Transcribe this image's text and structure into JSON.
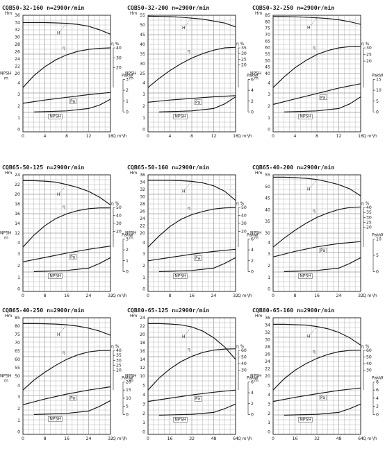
{
  "colors": {
    "grid": "#9a9a9a",
    "curve": "#1b1b1b",
    "paper": "#ffffff"
  },
  "chart_data": [
    {
      "type": "line",
      "title": "CQB50-32-160 n=2900r/min",
      "xlabel": "Q m³/h",
      "ylabel_head": "Hm",
      "x_ticks": [
        "0",
        "4",
        "8",
        "12",
        "16"
      ],
      "xlim": [
        0,
        16
      ],
      "head_ticks": [
        "20",
        "22",
        "24",
        "26",
        "28",
        "30",
        "32",
        "34",
        "36"
      ],
      "npsh_ticks": [
        "0",
        "1",
        "2",
        "3",
        "4"
      ],
      "eff_ticks": [
        "20",
        "30",
        "40"
      ],
      "power_ticks": [
        "0",
        "1",
        "2",
        "3"
      ],
      "eff_label": "η %",
      "power_label": "PakW",
      "npsh_label": "NPSH m",
      "series": [
        {
          "name": "H",
          "x": [
            0,
            2,
            4,
            6,
            8,
            10,
            12,
            14,
            16
          ],
          "y": [
            34,
            34,
            34,
            33.9,
            33.8,
            33.5,
            33,
            32,
            30.8
          ]
        },
        {
          "name": "η",
          "x": [
            0,
            2,
            4,
            6,
            8,
            10,
            12,
            14,
            16
          ],
          "y": [
            0,
            12,
            21,
            28,
            33,
            36.5,
            38.5,
            39.6,
            40
          ]
        },
        {
          "name": "Pa",
          "x": [
            0,
            4,
            8,
            12,
            16
          ],
          "y": [
            0.8,
            1.1,
            1.35,
            1.6,
            1.8
          ]
        },
        {
          "name": "NPSH",
          "x": [
            2,
            8,
            12,
            14,
            16
          ],
          "y": [
            1.5,
            1.6,
            1.8,
            2.1,
            2.6
          ]
        }
      ]
    },
    {
      "type": "line",
      "title": "CQB50-32-200 n=2900r/min",
      "xlabel": "Q m³/h",
      "ylabel_head": "Hm",
      "x_ticks": [
        "0",
        "4",
        "8",
        "12",
        "16"
      ],
      "xlim": [
        0,
        16
      ],
      "head_ticks": [
        "25",
        "30",
        "35",
        "40",
        "45",
        "50",
        "55"
      ],
      "npsh_ticks": [
        "0",
        "1",
        "2",
        "3",
        "4"
      ],
      "eff_ticks": [
        "20",
        "25",
        "30",
        "35"
      ],
      "power_ticks": [
        "0",
        "2",
        "4",
        "6"
      ],
      "eff_label": "η %",
      "power_label": "PakW",
      "npsh_label": "NPSH m",
      "series": [
        {
          "name": "H",
          "x": [
            0,
            2,
            4,
            6,
            8,
            10,
            12,
            14,
            16
          ],
          "y": [
            54.5,
            54.4,
            54.3,
            54,
            53.5,
            53,
            52,
            51,
            49
          ]
        },
        {
          "name": "η",
          "x": [
            0,
            2,
            4,
            6,
            8,
            10,
            12,
            14,
            16
          ],
          "y": [
            0,
            8,
            15,
            21,
            26,
            30,
            33,
            35,
            35.5
          ]
        },
        {
          "name": "Pa",
          "x": [
            0,
            4,
            8,
            12,
            16
          ],
          "y": [
            1.8,
            2.2,
            2.5,
            2.8,
            3.0
          ]
        },
        {
          "name": "NPSH",
          "x": [
            2,
            8,
            12,
            14,
            16
          ],
          "y": [
            1.5,
            1.6,
            1.8,
            2.2,
            2.8
          ]
        }
      ]
    },
    {
      "type": "line",
      "title": "CQB50-32-250 n=2900r/min",
      "xlabel": "Q m³/h",
      "ylabel_head": "Hm",
      "x_ticks": [
        "0",
        "4",
        "8",
        "12",
        "16"
      ],
      "xlim": [
        0,
        16
      ],
      "head_ticks": [
        "40",
        "45",
        "50",
        "55",
        "60",
        "65",
        "70",
        "75",
        "80",
        "85"
      ],
      "npsh_ticks": [
        "0",
        "1",
        "2",
        "3",
        "4"
      ],
      "eff_ticks": [
        "20",
        "25",
        "30"
      ],
      "power_ticks": [
        "0",
        "5",
        "10",
        "15"
      ],
      "eff_label": "η %",
      "power_label": "PakW",
      "npsh_label": "NPSH m",
      "series": [
        {
          "name": "H",
          "x": [
            0,
            2,
            4,
            6,
            8,
            10,
            12,
            14,
            16
          ],
          "y": [
            84,
            84,
            83.8,
            83.5,
            83,
            82.5,
            81.5,
            80,
            78
          ]
        },
        {
          "name": "η",
          "x": [
            0,
            2,
            4,
            6,
            8,
            10,
            12,
            14,
            16
          ],
          "y": [
            0,
            8,
            15,
            20.5,
            25,
            28,
            30,
            31,
            31
          ]
        },
        {
          "name": "Pa",
          "x": [
            0,
            4,
            8,
            12,
            16
          ],
          "y": [
            3.5,
            6,
            8.5,
            11,
            13
          ]
        },
        {
          "name": "NPSH",
          "x": [
            2,
            8,
            12,
            14,
            16
          ],
          "y": [
            1.5,
            1.6,
            1.8,
            2.2,
            2.8
          ]
        }
      ]
    },
    {
      "type": "line",
      "title": "CQB65-50-125 n=2900r/min",
      "xlabel": "Q m³/h",
      "ylabel_head": "Hm",
      "x_ticks": [
        "0",
        "8",
        "16",
        "24",
        "32"
      ],
      "xlim": [
        0,
        32
      ],
      "head_ticks": [
        "12",
        "14",
        "16",
        "18",
        "20",
        "22",
        "24"
      ],
      "npsh_ticks": [
        "0",
        "1",
        "2",
        "3",
        "4"
      ],
      "eff_ticks": [
        "20",
        "30",
        "40",
        "50"
      ],
      "power_ticks": [
        "0",
        "1",
        "2",
        "3"
      ],
      "eff_label": "η %",
      "power_label": "PakW",
      "npsh_label": "NPSH m",
      "series": [
        {
          "name": "H",
          "x": [
            0,
            4,
            8,
            12,
            16,
            20,
            24,
            28,
            32
          ],
          "y": [
            22.8,
            22.8,
            22.7,
            22.5,
            22,
            21.4,
            20.6,
            19.4,
            17.8
          ]
        },
        {
          "name": "η",
          "x": [
            0,
            4,
            8,
            12,
            16,
            20,
            24,
            28,
            32
          ],
          "y": [
            0,
            15,
            27,
            36,
            42,
            46,
            48.5,
            49.5,
            49.5
          ]
        },
        {
          "name": "Pa",
          "x": [
            0,
            8,
            16,
            24,
            32
          ],
          "y": [
            0.9,
            1.3,
            1.7,
            2.05,
            2.35
          ]
        },
        {
          "name": "NPSH",
          "x": [
            4,
            16,
            24,
            28,
            32
          ],
          "y": [
            1.5,
            1.6,
            1.8,
            2.2,
            2.7
          ]
        }
      ]
    },
    {
      "type": "line",
      "title": "CQB65-50-160 n=2900r/min",
      "xlabel": "Q m³/h",
      "ylabel_head": "Hm",
      "x_ticks": [
        "0",
        "8",
        "16",
        "24",
        "32"
      ],
      "xlim": [
        0,
        32
      ],
      "head_ticks": [
        "20",
        "22",
        "24",
        "26",
        "28",
        "30",
        "32",
        "34",
        "36"
      ],
      "npsh_ticks": [
        "0",
        "1",
        "2",
        "3",
        "4"
      ],
      "eff_ticks": [
        "20",
        "30",
        "40",
        "50"
      ],
      "power_ticks": [
        "0",
        "2",
        "4",
        "6"
      ],
      "eff_label": "η %",
      "power_label": "PakW",
      "npsh_label": "NPSH m",
      "series": [
        {
          "name": "H",
          "x": [
            0,
            4,
            8,
            12,
            16,
            20,
            24,
            28,
            32
          ],
          "y": [
            34.5,
            34.5,
            34.5,
            34.4,
            34.2,
            33.8,
            33,
            31.5,
            29
          ]
        },
        {
          "name": "η",
          "x": [
            0,
            4,
            8,
            12,
            16,
            20,
            24,
            28,
            32
          ],
          "y": [
            0,
            14,
            26,
            35,
            41,
            45,
            48,
            49.5,
            50
          ]
        },
        {
          "name": "Pa",
          "x": [
            0,
            8,
            16,
            24,
            32
          ],
          "y": [
            2.0,
            2.6,
            3.2,
            3.7,
            4.1
          ]
        },
        {
          "name": "NPSH",
          "x": [
            4,
            16,
            24,
            28,
            32
          ],
          "y": [
            1.5,
            1.6,
            1.8,
            2.2,
            2.7
          ]
        }
      ]
    },
    {
      "type": "line",
      "title": "CQB65-40-200 n=2900r/min",
      "xlabel": "Q m³/h",
      "ylabel_head": "Hm",
      "x_ticks": [
        "0",
        "8",
        "16",
        "24",
        "32"
      ],
      "xlim": [
        0,
        32
      ],
      "head_ticks": [
        "30",
        "35",
        "40",
        "45",
        "50",
        "55"
      ],
      "npsh_ticks": [
        "0",
        "1",
        "2",
        "3",
        "4"
      ],
      "eff_ticks": [
        "20",
        "25",
        "30",
        "35",
        "40"
      ],
      "power_ticks": [
        "0",
        "5",
        "10"
      ],
      "eff_label": "η %",
      "power_label": "PakW",
      "npsh_label": "NPSH m",
      "series": [
        {
          "name": "H",
          "x": [
            0,
            4,
            8,
            12,
            16,
            20,
            24,
            28,
            32
          ],
          "y": [
            54,
            54,
            53.8,
            53.5,
            53,
            52,
            50.8,
            49,
            46
          ]
        },
        {
          "name": "η",
          "x": [
            0,
            4,
            8,
            12,
            16,
            20,
            24,
            28,
            32
          ],
          "y": [
            0,
            9,
            17,
            24,
            30,
            34.5,
            38,
            40,
            40.5
          ]
        },
        {
          "name": "Pa",
          "x": [
            0,
            8,
            16,
            24,
            32
          ],
          "y": [
            4.5,
            6.2,
            7.6,
            8.6,
            9.2
          ]
        },
        {
          "name": "NPSH",
          "x": [
            4,
            16,
            24,
            28,
            32
          ],
          "y": [
            1.5,
            1.6,
            1.8,
            2.2,
            2.7
          ]
        }
      ]
    },
    {
      "type": "line",
      "title": "CQB65-40-250 n=2900r/min",
      "xlabel": "Q m³/h",
      "ylabel_head": "Hm",
      "x_ticks": [
        "0",
        "8",
        "16",
        "24",
        "32"
      ],
      "xlim": [
        0,
        32
      ],
      "head_ticks": [
        "50",
        "55",
        "60",
        "65",
        "70",
        "75",
        "80",
        "85"
      ],
      "npsh_ticks": [
        "0",
        "1",
        "2",
        "3",
        "4"
      ],
      "eff_ticks": [
        "20",
        "25",
        "30",
        "35",
        "40"
      ],
      "power_ticks": [
        "0",
        "5",
        "10",
        "15",
        "20"
      ],
      "eff_label": "η %",
      "power_label": "PakW",
      "npsh_label": "NPSH m",
      "series": [
        {
          "name": "H",
          "x": [
            0,
            4,
            8,
            12,
            16,
            20,
            24,
            28,
            32
          ],
          "y": [
            81.5,
            81.5,
            81.4,
            81.2,
            80.8,
            80,
            78.8,
            77,
            74.5
          ]
        },
        {
          "name": "η",
          "x": [
            0,
            4,
            8,
            12,
            16,
            20,
            24,
            28,
            32
          ],
          "y": [
            0,
            10,
            18,
            25,
            31,
            35.5,
            38.5,
            39.8,
            40
          ]
        },
        {
          "name": "Pa",
          "x": [
            0,
            8,
            16,
            24,
            32
          ],
          "y": [
            6,
            9.5,
            12.5,
            15,
            17
          ]
        },
        {
          "name": "NPSH",
          "x": [
            4,
            16,
            24,
            28,
            32
          ],
          "y": [
            1.5,
            1.6,
            1.8,
            2.2,
            2.7
          ]
        }
      ]
    },
    {
      "type": "line",
      "title": "CQB80-65-125 n=2900r/min",
      "xlabel": "Q m³/h",
      "ylabel_head": "Hm",
      "x_ticks": [
        "0",
        "16",
        "32",
        "48",
        "64"
      ],
      "xlim": [
        0,
        64
      ],
      "head_ticks": [
        "10",
        "12",
        "14",
        "16",
        "18",
        "20",
        "22",
        "24"
      ],
      "npsh_ticks": [
        "0",
        "1",
        "2",
        "3",
        "4",
        "5"
      ],
      "eff_ticks": [
        "30",
        "40",
        "50",
        "60"
      ],
      "power_ticks": [
        "0",
        "2",
        "4",
        "6"
      ],
      "eff_label": "η %",
      "power_label": "PakW",
      "npsh_label": "NPSH m",
      "series": [
        {
          "name": "H",
          "x": [
            0,
            8,
            16,
            24,
            32,
            40,
            48,
            56,
            64
          ],
          "y": [
            22.6,
            22.6,
            22.5,
            22.3,
            21.8,
            20.8,
            19.2,
            17,
            14
          ]
        },
        {
          "name": "η",
          "x": [
            0,
            8,
            16,
            24,
            32,
            40,
            48,
            56,
            64
          ],
          "y": [
            0,
            18,
            32,
            43,
            51,
            57,
            60.5,
            62,
            62.5
          ]
        },
        {
          "name": "Pa",
          "x": [
            0,
            16,
            32,
            48,
            64
          ],
          "y": [
            2.4,
            3.0,
            3.6,
            4.1,
            4.5
          ]
        },
        {
          "name": "NPSH",
          "x": [
            8,
            32,
            48,
            56,
            64
          ],
          "y": [
            1.8,
            1.9,
            2.1,
            2.5,
            3.0
          ]
        }
      ]
    },
    {
      "type": "line",
      "title": "CQB80-65-160 n=2900r/min",
      "xlabel": "Q m³/h",
      "ylabel_head": "Hm",
      "x_ticks": [
        "0",
        "16",
        "32",
        "48",
        "64"
      ],
      "xlim": [
        0,
        64
      ],
      "head_ticks": [
        "20",
        "22",
        "24",
        "26",
        "28",
        "30",
        "32",
        "34",
        "36"
      ],
      "npsh_ticks": [
        "0",
        "1",
        "2",
        "3",
        "4",
        "5"
      ],
      "eff_ticks": [
        "30",
        "40",
        "50",
        "60"
      ],
      "power_ticks": [
        "0",
        "2",
        "4",
        "6",
        "8"
      ],
      "eff_label": "η %",
      "power_label": "PakW",
      "npsh_label": "NPSH m",
      "series": [
        {
          "name": "H",
          "x": [
            0,
            8,
            16,
            24,
            32,
            40,
            48,
            56,
            64
          ],
          "y": [
            34.2,
            34.2,
            34.1,
            34,
            33.6,
            33,
            32,
            30.5,
            28.5
          ]
        },
        {
          "name": "η",
          "x": [
            0,
            8,
            16,
            24,
            32,
            40,
            48,
            56,
            64
          ],
          "y": [
            0,
            17,
            30,
            40,
            48,
            54,
            58,
            60,
            60.5
          ]
        },
        {
          "name": "Pa",
          "x": [
            0,
            16,
            32,
            48,
            64
          ],
          "y": [
            3.2,
            4.2,
            5.1,
            5.9,
            6.5
          ]
        },
        {
          "name": "NPSH",
          "x": [
            8,
            32,
            48,
            56,
            64
          ],
          "y": [
            1.8,
            1.9,
            2.1,
            2.5,
            3.0
          ]
        }
      ]
    }
  ]
}
